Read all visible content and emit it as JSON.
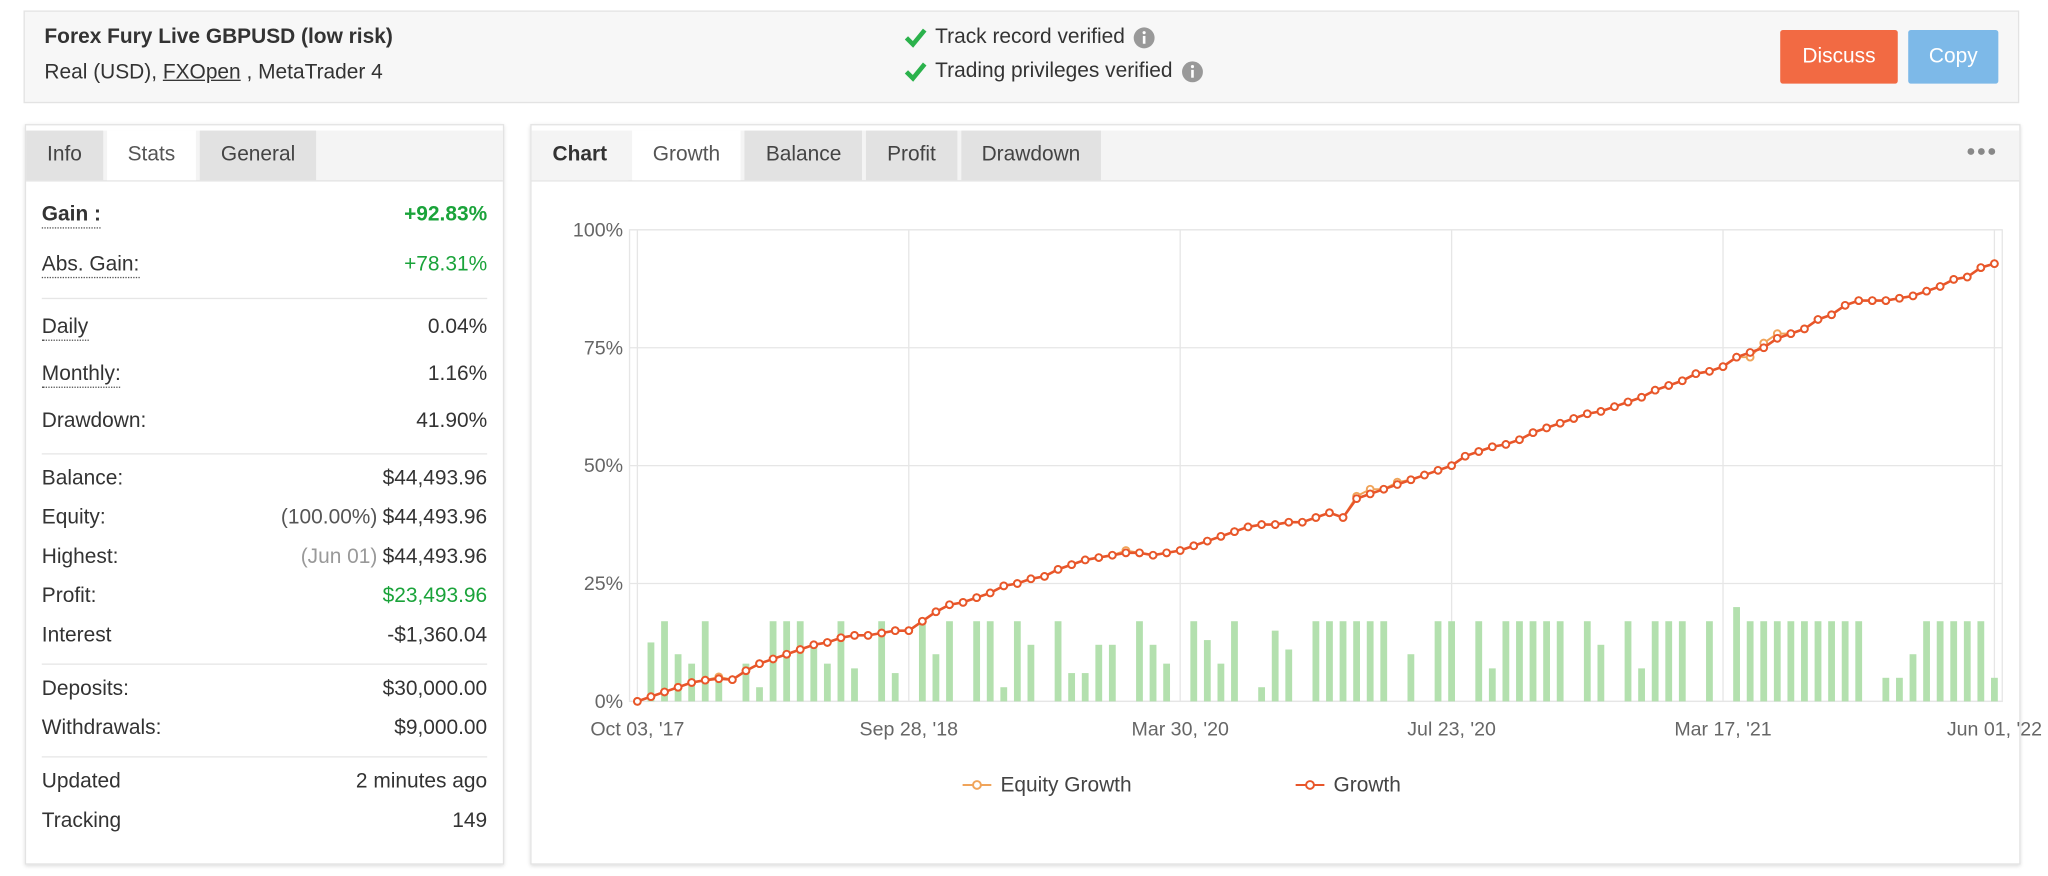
{
  "header": {
    "title": "Forex Fury Live GBPUSD (low risk)",
    "account_type": "Real (USD),",
    "broker": "FXOpen",
    "platform": ", MetaTrader 4",
    "verifications": [
      "Track record verified",
      "Trading privileges verified"
    ],
    "buttons": [
      "Discuss",
      "Copy"
    ]
  },
  "left_tabs": {
    "items": [
      "Info",
      "Stats",
      "General"
    ],
    "active": 1
  },
  "stats": {
    "groups": [
      [
        {
          "label": "Gain :",
          "value": "+92.83%",
          "color": "#1aa33a",
          "dotted": true,
          "bold": true
        },
        {
          "label": "Abs. Gain:",
          "value": "+78.31%",
          "color": "#1aa33a",
          "dotted": true
        }
      ],
      [
        {
          "label": "Daily",
          "value": "0.04%",
          "dotted": true
        },
        {
          "label": "Monthly:",
          "value": "1.16%",
          "dotted": true
        },
        {
          "label": "Drawdown:",
          "value": "41.90%"
        }
      ],
      [
        {
          "label": "Balance:",
          "value": "$44,493.96"
        },
        {
          "label": "Equity:",
          "note": "(100.00%)",
          "value": "$44,493.96"
        },
        {
          "label": "Highest:",
          "note": "(Jun 01)",
          "value": "$44,493.96"
        },
        {
          "label": "Profit:",
          "value": "$23,493.96",
          "color": "#1aa33a"
        },
        {
          "label": "Interest",
          "value": "-$1,360.04"
        }
      ],
      [
        {
          "label": "Deposits:",
          "value": "$30,000.00"
        },
        {
          "label": "Withdrawals:",
          "value": "$9,000.00"
        }
      ],
      [
        {
          "label": "Updated",
          "value": "2 minutes ago"
        },
        {
          "label": "Tracking",
          "value": "149"
        }
      ]
    ]
  },
  "chart_tabs": {
    "items": [
      "Chart",
      "Growth",
      "Balance",
      "Profit",
      "Drawdown"
    ],
    "active": 1
  },
  "chart_data": {
    "type": "line",
    "categories": [
      "Oct 03, '17",
      null,
      null,
      null,
      null,
      null,
      null,
      null,
      null,
      null,
      null,
      null,
      null,
      null,
      null,
      null,
      null,
      null,
      null,
      null,
      "Sep 28, '18",
      null,
      null,
      null,
      null,
      null,
      null,
      null,
      null,
      null,
      null,
      null,
      null,
      null,
      null,
      null,
      null,
      null,
      null,
      null,
      "Mar 30, '20",
      null,
      null,
      null,
      null,
      null,
      null,
      null,
      null,
      null,
      null,
      null,
      null,
      null,
      null,
      null,
      null,
      null,
      null,
      null,
      "Jul 23, '20",
      null,
      null,
      null,
      null,
      null,
      null,
      null,
      null,
      null,
      null,
      null,
      null,
      null,
      null,
      null,
      null,
      null,
      null,
      null,
      "Mar 17, '21",
      null,
      null,
      null,
      null,
      null,
      null,
      null,
      null,
      null,
      null,
      null,
      null,
      null,
      null,
      null,
      null,
      null,
      null,
      null,
      "Jun 01, '22"
    ],
    "series": [
      {
        "name": "Equity Growth",
        "color": "#f0a45a",
        "values": [
          0,
          1,
          2,
          3,
          4,
          4.5,
          5.2,
          4.6,
          6.5,
          8,
          9,
          10,
          11,
          12,
          12.5,
          13.5,
          14,
          14,
          14.5,
          15,
          15,
          17,
          19,
          20.5,
          21,
          22,
          23,
          24.5,
          25,
          26,
          26.5,
          28,
          29,
          30,
          30.5,
          31,
          32,
          31.5,
          31,
          31.5,
          32,
          33,
          34,
          35,
          36,
          37,
          37.5,
          37.5,
          38,
          38,
          39,
          40,
          39,
          43.5,
          45,
          45,
          46.5,
          47,
          48,
          49,
          50,
          52,
          53,
          54,
          54.5,
          55.5,
          57,
          58,
          59,
          60,
          61,
          61.5,
          62.5,
          63.5,
          64.5,
          66,
          67,
          68,
          69.5,
          70,
          71,
          73,
          73,
          76,
          78,
          78,
          79,
          81,
          82,
          84,
          85,
          85,
          85,
          85.5,
          86,
          87,
          88,
          89.5,
          90,
          92,
          92.83
        ]
      },
      {
        "name": "Growth",
        "color": "#e8562a",
        "values": [
          0,
          1,
          2,
          3,
          4,
          4.5,
          4.8,
          4.6,
          6.5,
          8,
          9,
          10,
          11,
          12,
          12.5,
          13.5,
          14,
          14,
          14.5,
          15,
          15,
          17,
          19,
          20.5,
          21,
          22,
          23,
          24.5,
          25,
          26,
          26.5,
          28,
          29,
          30,
          30.5,
          31,
          31.5,
          31.5,
          31,
          31.5,
          32,
          33,
          34,
          35,
          36,
          37,
          37.5,
          37.5,
          38,
          38,
          39,
          40,
          39,
          43,
          44,
          45,
          46,
          47,
          48,
          49,
          50,
          52,
          53,
          54,
          54.5,
          55.5,
          57,
          58,
          59,
          60,
          61,
          61.5,
          62.5,
          63.5,
          64.5,
          66,
          67,
          68,
          69.5,
          70,
          71,
          73,
          74,
          75,
          77,
          78,
          79,
          81,
          82,
          84,
          85,
          85,
          85,
          85.5,
          86,
          87,
          88,
          89.5,
          90,
          92,
          92.83
        ]
      }
    ],
    "bars": {
      "color": "#b3e0ae",
      "values": [
        0,
        12.5,
        17,
        10,
        8,
        17,
        5,
        0,
        8,
        3,
        17,
        17,
        17,
        12,
        8,
        17,
        7,
        0,
        17,
        6,
        0,
        17,
        10,
        17,
        0,
        17,
        17,
        3,
        17,
        12,
        0,
        17,
        6,
        6,
        12,
        12,
        0,
        17,
        12,
        8,
        0,
        17,
        13,
        8,
        17,
        0,
        3,
        15,
        11,
        0,
        17,
        17,
        17,
        17,
        17,
        17,
        0,
        10,
        0,
        17,
        17,
        0,
        17,
        7,
        17,
        17,
        17,
        17,
        17,
        0,
        17,
        12,
        0,
        17,
        7,
        17,
        17,
        17,
        0,
        17,
        0,
        20,
        17,
        17,
        17,
        17,
        17,
        17,
        17,
        17,
        17,
        0,
        5,
        5,
        10,
        17,
        17,
        17,
        17,
        17,
        5
      ]
    },
    "ylim": [
      0,
      100
    ],
    "yticks": [
      {
        "value": 0,
        "label": "0%"
      },
      {
        "value": 25,
        "label": "25%"
      },
      {
        "value": 50,
        "label": "50%"
      },
      {
        "value": 75,
        "label": "75%"
      },
      {
        "value": 100,
        "label": "100%"
      }
    ],
    "grid": true
  }
}
